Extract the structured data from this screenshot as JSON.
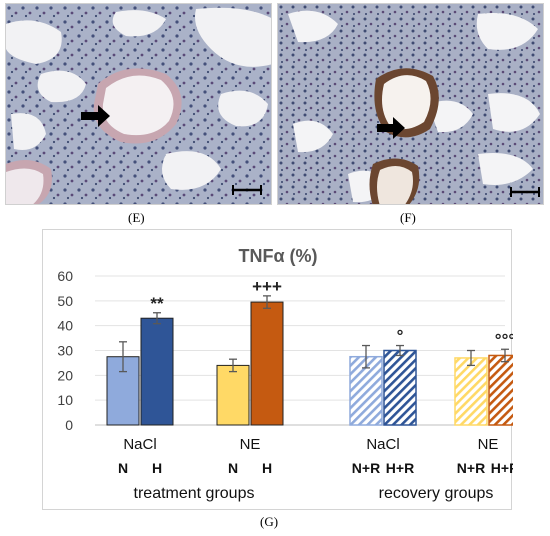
{
  "panels": {
    "e_label": "(E)",
    "f_label": "(F)",
    "g_label": "(G)"
  },
  "chart_data": {
    "type": "bar",
    "title": "TNFα (%)",
    "ylim": [
      0,
      60
    ],
    "yticks": [
      0,
      10,
      20,
      30,
      40,
      50,
      60
    ],
    "grid": true,
    "groups": [
      {
        "name": "treatment groups",
        "subgroups": [
          {
            "name": "NaCl",
            "bars": [
              {
                "label": "N",
                "value": 27.5,
                "error": 6,
                "color": "#8faadc",
                "fill": "solid",
                "marker": ""
              },
              {
                "label": "H",
                "value": 43,
                "error": 2.2,
                "color": "#2f5597",
                "fill": "solid",
                "marker": "**"
              }
            ]
          },
          {
            "name": "NE",
            "bars": [
              {
                "label": "N",
                "value": 24,
                "error": 2.5,
                "color": "#ffd966",
                "fill": "solid",
                "marker": ""
              },
              {
                "label": "H",
                "value": 49.5,
                "error": 2.5,
                "color": "#c55a11",
                "fill": "solid",
                "marker": "+++"
              }
            ]
          }
        ]
      },
      {
        "name": "recovery groups",
        "subgroups": [
          {
            "name": "NaCl",
            "bars": [
              {
                "label": "N+R",
                "value": 27.5,
                "error": 4.5,
                "color": "#8faadc",
                "fill": "hatched",
                "marker": ""
              },
              {
                "label": "H+R",
                "value": 30,
                "error": 2,
                "color": "#2f5597",
                "fill": "hatched",
                "marker": "°"
              }
            ]
          },
          {
            "name": "NE",
            "bars": [
              {
                "label": "N+R",
                "value": 27,
                "error": 3,
                "color": "#ffd966",
                "fill": "hatched",
                "marker": ""
              },
              {
                "label": "H+R",
                "value": 28,
                "error": 2.5,
                "color": "#c55a11",
                "fill": "hatched",
                "marker": "°°°"
              }
            ]
          }
        ]
      }
    ]
  }
}
